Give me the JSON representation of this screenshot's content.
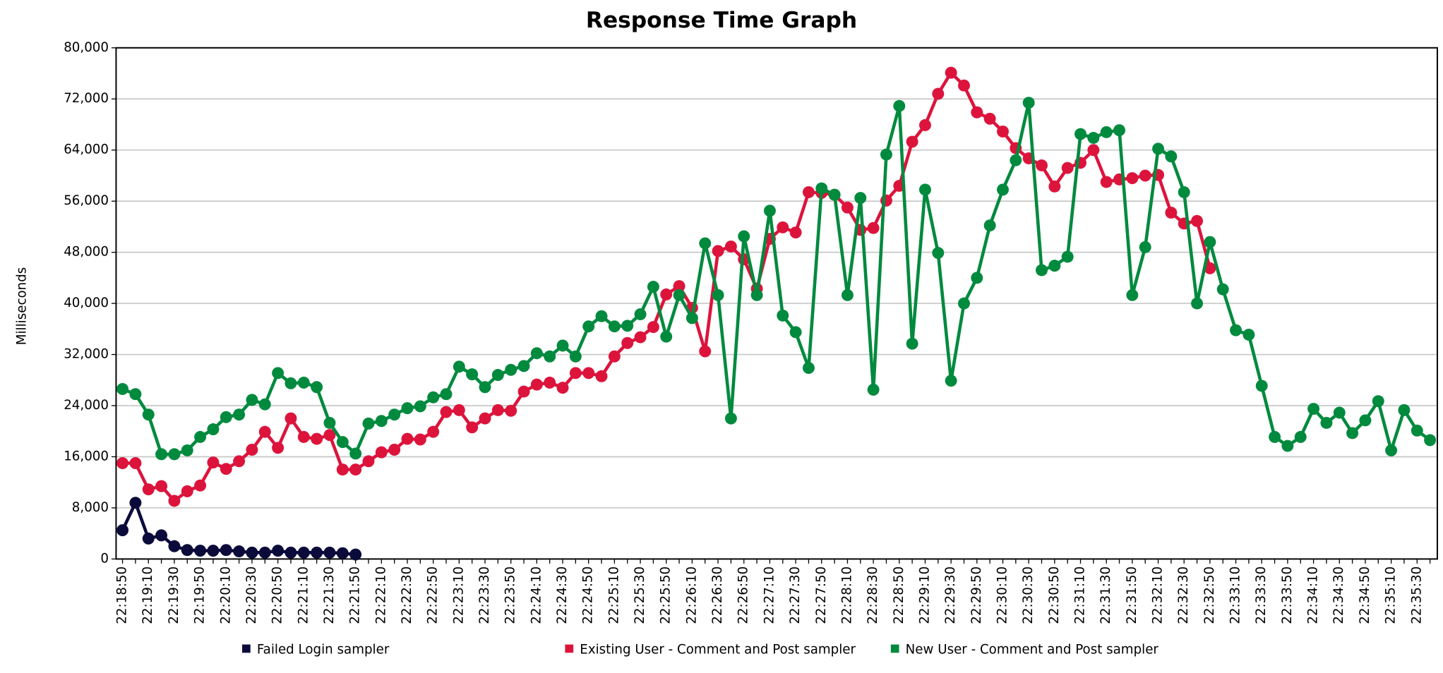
{
  "chart_data": {
    "type": "line",
    "title": "Response Time Graph",
    "y_label": "Milliseconds",
    "categories": [
      "22:18:50",
      null,
      "22:19:10",
      null,
      "22:19:30",
      null,
      "22:19:50",
      null,
      "22:20:10",
      null,
      "22:20:30",
      null,
      "22:20:50",
      null,
      "22:21:10",
      null,
      "22:21:30",
      null,
      "22:21:50",
      null,
      "22:22:10",
      null,
      "22:22:30",
      null,
      "22:22:50",
      null,
      "22:23:10",
      null,
      "22:23:30",
      null,
      "22:23:50",
      null,
      "22:24:10",
      null,
      "22:24:30",
      null,
      "22:24:50",
      null,
      "22:25:10",
      null,
      "22:25:30",
      null,
      "22:25:50",
      null,
      "22:26:10",
      null,
      "22:26:30",
      null,
      "22:26:50",
      null,
      "22:27:10",
      null,
      "22:27:30",
      null,
      "22:27:50",
      null,
      "22:28:10",
      null,
      "22:28:30",
      null,
      "22:28:50",
      null,
      "22:29:10",
      null,
      "22:29:30",
      null,
      "22:29:50",
      null,
      "22:30:10",
      null,
      "22:30:30",
      null,
      "22:30:50",
      null,
      "22:31:10",
      null,
      "22:31:30",
      null,
      "22:31:50",
      null,
      "22:32:10",
      null,
      "22:32:30",
      null,
      "22:32:50",
      null,
      "22:33:10",
      null,
      "22:33:30",
      null,
      "22:33:50",
      null,
      "22:34:10",
      null,
      "22:34:30",
      null,
      "22:34:50",
      null,
      "22:35:10",
      null,
      "22:35:30",
      null
    ],
    "series": [
      {
        "name": "Failed Login sampler",
        "color": "#0b0b3b",
        "values": [
          4500,
          8800,
          3200,
          3700,
          2000,
          1400,
          1300,
          1300,
          1400,
          1200,
          1000,
          1000,
          1300,
          1000,
          1000,
          1000,
          1000,
          900,
          700,
          null,
          null,
          null,
          null,
          null,
          null,
          null,
          null,
          null,
          null,
          null,
          null,
          null,
          null,
          null,
          null,
          null,
          null,
          null,
          null,
          null,
          null,
          null,
          null,
          null,
          null,
          null,
          null,
          null,
          null,
          null,
          null,
          null,
          null,
          null,
          null,
          null,
          null,
          null,
          null,
          null,
          null,
          null,
          null,
          null,
          null,
          null,
          null,
          null,
          null,
          null,
          null,
          null,
          null,
          null,
          null,
          null,
          null,
          null,
          null,
          null,
          null,
          null,
          null,
          null,
          null,
          null,
          null,
          null,
          null,
          null,
          null,
          null,
          null,
          null,
          null,
          null,
          null,
          null,
          null,
          null,
          null,
          null
        ]
      },
      {
        "name": "Existing User - Comment and Post sampler",
        "color": "#dc143c",
        "values": [
          15000,
          15000,
          10900,
          11400,
          9100,
          10600,
          11500,
          15100,
          14100,
          15300,
          17100,
          19900,
          17400,
          22000,
          19100,
          18800,
          19400,
          14000,
          14000,
          15300,
          16700,
          17100,
          18800,
          18700,
          19900,
          23000,
          23300,
          20600,
          22000,
          23300,
          23200,
          26200,
          27300,
          27600,
          26800,
          29100,
          29100,
          28600,
          31700,
          33800,
          34700,
          36300,
          41400,
          42700,
          39300,
          32500,
          48200,
          48900,
          46900,
          42300,
          50100,
          51900,
          51100,
          57400,
          57300,
          57000,
          55000,
          51500,
          51800,
          56100,
          58400,
          65300,
          67900,
          72800,
          76100,
          74100,
          69900,
          68900,
          66900,
          64300,
          62700,
          61600,
          58300,
          61200,
          62000,
          64000,
          59000,
          59400,
          59600,
          60000,
          60100,
          54200,
          52500,
          52900,
          45500,
          null,
          null,
          null,
          null,
          null,
          null,
          null,
          null,
          null,
          null,
          null,
          null,
          null,
          null,
          null,
          null,
          null
        ]
      },
      {
        "name": "New User - Comment and Post sampler",
        "color": "#008a3e",
        "values": [
          26600,
          25800,
          22600,
          16400,
          16400,
          17000,
          19100,
          20300,
          22200,
          22600,
          24900,
          24200,
          29100,
          27500,
          27600,
          26900,
          21300,
          18300,
          16500,
          21200,
          21600,
          22600,
          23600,
          23900,
          25300,
          25800,
          30100,
          28900,
          26900,
          28800,
          29600,
          30200,
          32200,
          31700,
          33400,
          31700,
          36400,
          38000,
          36400,
          36500,
          38300,
          42600,
          34800,
          41300,
          37700,
          49400,
          41300,
          22000,
          50500,
          41300,
          54500,
          38100,
          35500,
          29900,
          58000,
          57000,
          41300,
          56500,
          26500,
          63300,
          70900,
          33700,
          57800,
          47900,
          27900,
          40000,
          44000,
          52200,
          57800,
          62400,
          71400,
          45200,
          45900,
          47300,
          66500,
          65900,
          66800,
          67100,
          41300,
          48800,
          64200,
          63000,
          57400,
          40000,
          49600,
          42200,
          35800,
          35100,
          27100,
          19100,
          17700,
          19100,
          23500,
          21300,
          22900,
          19700,
          21700,
          24700,
          17000,
          23300,
          20100,
          18600
        ]
      }
    ],
    "ylim": [
      0,
      80000
    ],
    "yticks": [
      0,
      {
        "value": 8000,
        "label": "8,000"
      },
      {
        "value": 16000,
        "label": "16,000"
      },
      {
        "value": 24000,
        "label": "24,000"
      },
      {
        "value": 32000,
        "label": "32,000"
      },
      {
        "value": 40000,
        "label": "40,000"
      },
      {
        "value": 48000,
        "label": "48,000"
      },
      {
        "value": 56000,
        "label": "56,000"
      },
      {
        "value": 64000,
        "label": "64,000"
      },
      {
        "value": 72000,
        "label": "72,000"
      },
      {
        "value": 80000,
        "label": "80,000"
      }
    ],
    "grid": true,
    "legend": "bottom"
  }
}
